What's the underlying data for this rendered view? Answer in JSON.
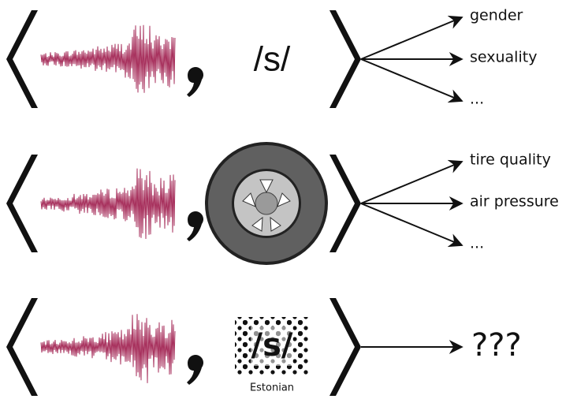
{
  "rows": [
    {
      "item": "/s/",
      "outputs": [
        "gender",
        "sexuality",
        "..."
      ]
    },
    {
      "outputs": [
        "tire quality",
        "air pressure",
        "..."
      ]
    },
    {
      "item": "/s/",
      "caption": "Estonian",
      "outputs": [
        "???"
      ]
    }
  ]
}
